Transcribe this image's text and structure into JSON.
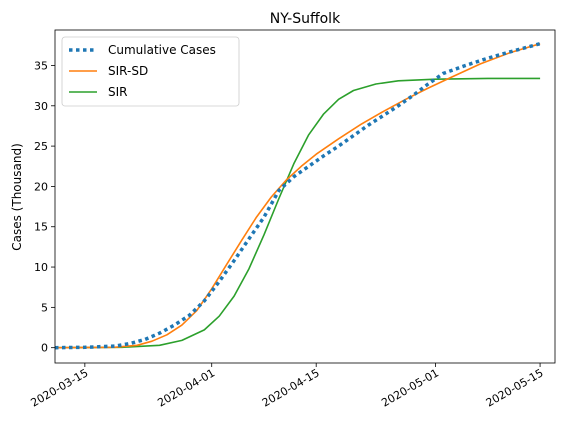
{
  "chart_data": {
    "type": "line",
    "title": "NY-Suffolk",
    "xlabel": "",
    "ylabel": "Cases (Thousand)",
    "xlim": [
      "2020-03-11",
      "2020-05-17"
    ],
    "ylim": [
      -1.9,
      39.4
    ],
    "grid": false,
    "legend_position": "top-left",
    "x_ticks": [
      "2020-03-15",
      "2020-04-01",
      "2020-04-15",
      "2020-05-01",
      "2020-05-15"
    ],
    "y_ticks": [
      0,
      5,
      10,
      15,
      20,
      25,
      30,
      35
    ],
    "series": [
      {
        "name": "Cumulative Cases",
        "color": "#1f77b4",
        "style": "dotted",
        "x": [
          "2020-03-11",
          "2020-03-15",
          "2020-03-19",
          "2020-03-21",
          "2020-03-23",
          "2020-03-25",
          "2020-03-27",
          "2020-03-29",
          "2020-03-31",
          "2020-04-02",
          "2020-04-04",
          "2020-04-06",
          "2020-04-08",
          "2020-04-10",
          "2020-04-12",
          "2020-04-14",
          "2020-04-16",
          "2020-04-18",
          "2020-04-20",
          "2020-04-22",
          "2020-04-24",
          "2020-04-26",
          "2020-04-28",
          "2020-04-30",
          "2020-05-02",
          "2020-05-05",
          "2020-05-08",
          "2020-05-11",
          "2020-05-15"
        ],
        "y": [
          0.0,
          0.05,
          0.2,
          0.5,
          1.0,
          1.8,
          2.8,
          4.0,
          5.8,
          8.2,
          10.8,
          13.5,
          16.2,
          19.5,
          21.2,
          22.5,
          23.8,
          25.0,
          26.3,
          27.6,
          28.8,
          30.0,
          31.3,
          32.7,
          34.0,
          35.0,
          35.9,
          36.7,
          37.7
        ]
      },
      {
        "name": "SIR-SD",
        "color": "#ff7f0e",
        "style": "solid",
        "x": [
          "2020-03-11",
          "2020-03-19",
          "2020-03-22",
          "2020-03-24",
          "2020-03-26",
          "2020-03-28",
          "2020-03-30",
          "2020-04-01",
          "2020-04-03",
          "2020-04-05",
          "2020-04-07",
          "2020-04-09",
          "2020-04-11",
          "2020-04-13",
          "2020-04-15",
          "2020-04-18",
          "2020-04-21",
          "2020-04-24",
          "2020-04-27",
          "2020-04-30",
          "2020-05-03",
          "2020-05-07",
          "2020-05-11",
          "2020-05-15"
        ],
        "y": [
          0.0,
          0.05,
          0.3,
          0.8,
          1.6,
          2.8,
          4.6,
          7.3,
          10.3,
          13.3,
          16.2,
          18.7,
          20.8,
          22.5,
          24.0,
          25.9,
          27.7,
          29.3,
          30.8,
          32.2,
          33.5,
          35.2,
          36.6,
          37.7
        ]
      },
      {
        "name": "SIR",
        "color": "#2ca02c",
        "style": "solid",
        "x": [
          "2020-03-11",
          "2020-03-20",
          "2020-03-25",
          "2020-03-28",
          "2020-03-31",
          "2020-04-02",
          "2020-04-04",
          "2020-04-06",
          "2020-04-08",
          "2020-04-10",
          "2020-04-12",
          "2020-04-14",
          "2020-04-16",
          "2020-04-18",
          "2020-04-20",
          "2020-04-23",
          "2020-04-26",
          "2020-05-01",
          "2020-05-08",
          "2020-05-15"
        ],
        "y": [
          0.0,
          0.05,
          0.3,
          0.9,
          2.2,
          3.9,
          6.4,
          9.8,
          14.0,
          18.5,
          22.8,
          26.4,
          29.0,
          30.8,
          31.9,
          32.7,
          33.1,
          33.3,
          33.4,
          33.4
        ]
      }
    ]
  }
}
